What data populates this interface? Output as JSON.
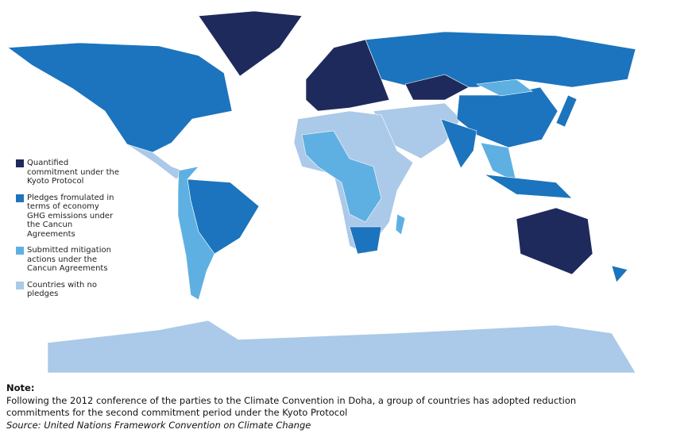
{
  "legend": {
    "items": [
      {
        "label": "Quantified commitment under the Kyoto Protocol",
        "color": "#1e2a5c"
      },
      {
        "label": "Pledges fromulated in terms of economy GHG emissions under the Cancun Agreements",
        "color": "#1b74bd"
      },
      {
        "label": "Submitted mitigation actions under the Cancun Agreements",
        "color": "#5fb0e2"
      },
      {
        "label": "Countries with no pledges",
        "color": "#abc9e8"
      }
    ]
  },
  "note": {
    "heading": "Note:",
    "text": "Following the 2012 conference of the parties to the Climate Convention in Doha, a group of countries has adopted reduction commitments for the second commitment period under the Kyoto Protocol",
    "source": "Source: United Nations Framework Convention on Climate Change"
  }
}
